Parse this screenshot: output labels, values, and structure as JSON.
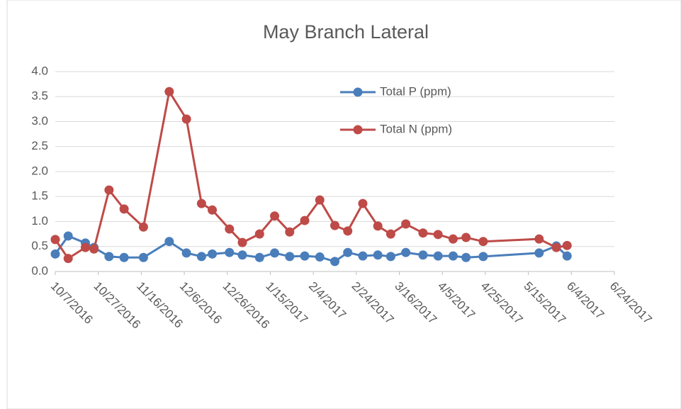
{
  "chart_data": {
    "type": "line",
    "title": "May Branch Lateral",
    "x": [
      "10/7/2016",
      "10/13/2016",
      "10/21/2016",
      "10/25/2016",
      "11/1/2016",
      "11/8/2016",
      "11/17/2016",
      "11/29/2016",
      "12/7/2016",
      "12/14/2016",
      "12/19/2016",
      "12/27/2016",
      "1/2/2017",
      "1/10/2017",
      "1/17/2017",
      "1/24/2017",
      "1/31/2017",
      "2/7/2017",
      "2/14/2017",
      "2/20/2017",
      "2/27/2017",
      "3/6/2017",
      "3/12/2017",
      "3/19/2017",
      "3/27/2017",
      "4/3/2017",
      "4/10/2017",
      "4/16/2017",
      "4/24/2017",
      "5/20/2017",
      "5/28/2017",
      "6/2/2017"
    ],
    "series": [
      {
        "name": "Total P (ppm)",
        "color": "#4a7ebb",
        "values": [
          0.35,
          0.71,
          0.57,
          0.48,
          0.3,
          0.28,
          0.28,
          0.6,
          0.37,
          0.3,
          0.35,
          0.38,
          0.33,
          0.28,
          0.37,
          0.3,
          0.31,
          0.29,
          0.2,
          0.38,
          0.31,
          0.33,
          0.3,
          0.38,
          0.33,
          0.31,
          0.31,
          0.28,
          0.3,
          0.37,
          0.51,
          0.31
        ]
      },
      {
        "name": "Total N (ppm)",
        "color": "#be4b48",
        "values": [
          0.64,
          0.26,
          0.48,
          0.45,
          1.63,
          1.25,
          0.89,
          3.6,
          3.05,
          1.36,
          1.23,
          0.85,
          0.58,
          0.75,
          1.11,
          0.79,
          1.02,
          1.43,
          0.92,
          0.81,
          1.36,
          0.91,
          0.75,
          0.95,
          0.77,
          0.74,
          0.65,
          0.68,
          0.6,
          0.65,
          0.48,
          0.52
        ]
      }
    ],
    "xlim": [
      "10/7/2016",
      "6/24/2017"
    ],
    "xticks": [
      "10/7/2016",
      "10/27/2016",
      "11/16/2016",
      "12/6/2016",
      "12/26/2016",
      "1/15/2017",
      "2/4/2017",
      "2/24/2017",
      "3/16/2017",
      "4/5/2017",
      "4/25/2017",
      "5/15/2017",
      "6/4/2017",
      "6/24/2017"
    ],
    "ylim": [
      0,
      4
    ],
    "yticks": [
      {
        "value": 0,
        "label": "0.0"
      },
      0.5,
      {
        "value": 1,
        "label": "1.0"
      },
      1.5,
      {
        "value": 2,
        "label": "2.0"
      },
      2.5,
      {
        "value": 3,
        "label": "3.0"
      },
      3.5,
      {
        "value": 4,
        "label": "4.0"
      }
    ],
    "grid": true
  }
}
